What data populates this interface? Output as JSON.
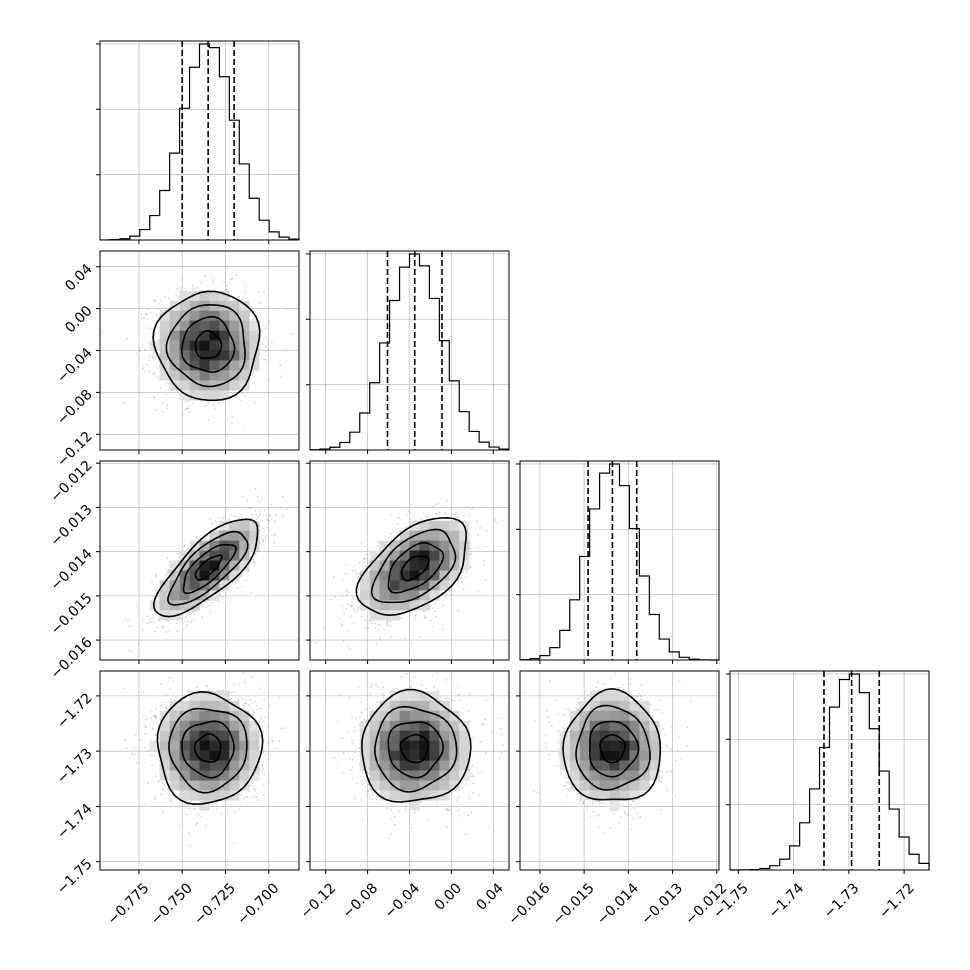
{
  "chart_data": {
    "type": "corner",
    "n_params": 4,
    "parameters": [
      {
        "mean": -0.735,
        "sd": 0.015,
        "q16": -0.75,
        "q50": -0.735,
        "q84": -0.72,
        "range": [
          -0.7975,
          -0.6825
        ],
        "ticks": [
          -0.775,
          -0.75,
          -0.725,
          -0.7
        ],
        "tick_labels": [
          "−0.775",
          "−0.750",
          "−0.725",
          "−0.700"
        ]
      },
      {
        "mean": -0.035,
        "sd": 0.026,
        "q16": -0.061,
        "q50": -0.035,
        "q84": -0.009,
        "range": [
          -0.135,
          0.055
        ],
        "ticks": [
          -0.12,
          -0.08,
          -0.04,
          0.0,
          0.04
        ],
        "tick_labels": [
          "−0.12",
          "−0.08",
          "−0.04",
          "0.00",
          "0.04"
        ]
      },
      {
        "mean": -0.01436,
        "sd": 0.00055,
        "q16": -0.01491,
        "q50": -0.01436,
        "q84": -0.01381,
        "range": [
          -0.01645,
          -0.01195
        ],
        "ticks": [
          -0.016,
          -0.015,
          -0.014,
          -0.013,
          -0.012
        ],
        "tick_labels": [
          "−0.016",
          "−0.015",
          "−0.014",
          "−0.013",
          "−0.012"
        ]
      },
      {
        "mean": -1.7295,
        "sd": 0.005,
        "q16": -1.7345,
        "q50": -1.7295,
        "q84": -1.7245,
        "range": [
          -1.7515,
          -1.7155
        ],
        "ticks": [
          -1.75,
          -1.74,
          -1.73,
          -1.72
        ],
        "tick_labels": [
          "−1.75",
          "−1.74",
          "−1.73",
          "−1.72"
        ]
      }
    ],
    "correlations": [
      [
        1,
        0.0,
        0.75,
        0.0
      ],
      [
        0.0,
        1,
        0.5,
        0.0
      ],
      [
        0.75,
        0.5,
        1,
        0.0
      ],
      [
        0.0,
        0.0,
        0.0,
        1
      ]
    ],
    "histogram_bins": 20,
    "contour_levels_sigma": [
      0.5,
      1.0,
      1.5,
      2.0
    ],
    "quantile_line_style": "dashed",
    "grid": true
  }
}
